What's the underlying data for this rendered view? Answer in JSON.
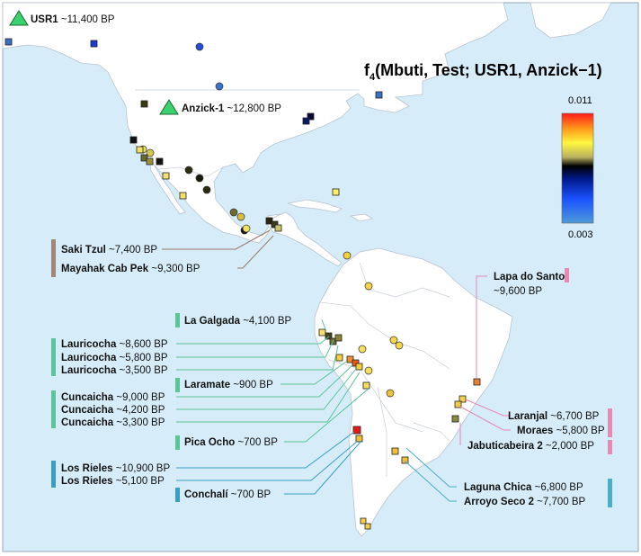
{
  "title": {
    "main": "f",
    "sub": "4",
    "rest": "(Mbuti, Test; USR1, Anzick−1)"
  },
  "scale": {
    "max_label": "0.011",
    "min_label": "0.003"
  },
  "references": [
    {
      "name": "USR1",
      "age": " ~11,400 BP"
    },
    {
      "name": "Anzick-1",
      "age": " ~12,800 BP"
    }
  ],
  "labels": [
    {
      "name": "Saki Tzul",
      "age": " ~7,400 BP"
    },
    {
      "name": "Mayahak Cab Pek",
      "age": " ~9,300 BP"
    },
    {
      "name": "Lapa do Santo",
      "age": "~9,600 BP"
    },
    {
      "name": "La Galgada",
      "age": " ~4,100 BP"
    },
    {
      "name": "Lauricocha",
      "age": " ~8,600 BP"
    },
    {
      "name": "Lauricocha",
      "age": " ~5,800 BP"
    },
    {
      "name": "Lauricocha",
      "age": " ~3,500 BP"
    },
    {
      "name": "Laramate",
      "age": " ~900 BP"
    },
    {
      "name": "Cuncaicha",
      "age": " ~9,000 BP"
    },
    {
      "name": "Cuncaicha",
      "age": " ~4,200 BP"
    },
    {
      "name": "Cuncaicha",
      "age": " ~3,300 BP"
    },
    {
      "name": "Pica Ocho",
      "age": " ~700 BP"
    },
    {
      "name": "Los Rieles",
      "age": " ~10,900 BP"
    },
    {
      "name": "Los Rieles",
      "age": " ~5,100 BP"
    },
    {
      "name": "Conchalí",
      "age": " ~700 BP"
    },
    {
      "name": "Laranjal",
      "age": " ~6,700 BP"
    },
    {
      "name": "Moraes",
      "age": " ~5,800 BP"
    },
    {
      "name": "Jabuticabeira 2",
      "age": " ~2,000 BP"
    },
    {
      "name": "Laguna Chica",
      "age": " ~6,800 BP"
    },
    {
      "name": "Arroyo Seco 2",
      "age": " ~7,700 BP"
    }
  ],
  "colors": {
    "ocean": "#d6ecf8",
    "land": "#ffffff",
    "region_bar_centralamerica": "#a0877a",
    "region_bar_andes": "#5cc39a",
    "region_bar_chile": "#3a9ec4",
    "region_bar_brazil": "#e889b4",
    "region_bar_argentina": "#4aaec8",
    "triangle": "#3bd16f"
  }
}
